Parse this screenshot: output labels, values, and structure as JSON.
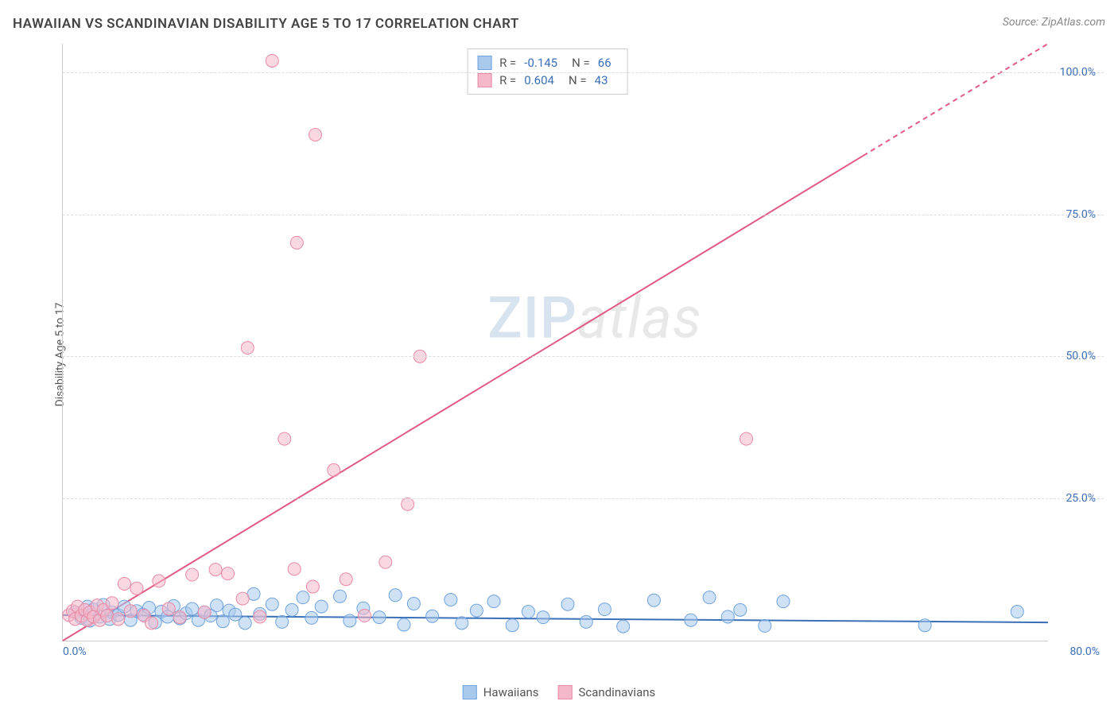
{
  "title": "HAWAIIAN VS SCANDINAVIAN DISABILITY AGE 5 TO 17 CORRELATION CHART",
  "source": "Source: ZipAtlas.com",
  "y_axis_label": "Disability Age 5 to 17",
  "watermark_a": "ZIP",
  "watermark_b": "atlas",
  "chart": {
    "type": "scatter",
    "xlim": [
      0,
      80
    ],
    "ylim": [
      0,
      105
    ],
    "x_ticks": [
      {
        "pos": 0,
        "label": "0.0%"
      },
      {
        "pos": 80,
        "label": "80.0%"
      }
    ],
    "y_ticks": [
      {
        "pos": 25,
        "label": "25.0%"
      },
      {
        "pos": 50,
        "label": "50.0%"
      },
      {
        "pos": 75,
        "label": "75.0%"
      },
      {
        "pos": 100,
        "label": "100.0%"
      }
    ],
    "grid_color": "#dddddd",
    "background_color": "#ffffff",
    "marker_radius": 8,
    "series": [
      {
        "name": "Hawaiians",
        "fill": "#a8c8ec",
        "stroke": "#6fa3dd",
        "fill_opacity": 0.55,
        "trend": {
          "x1": 0,
          "y1": 4.5,
          "x2": 80,
          "y2": 3.2,
          "color": "#3b6fb6",
          "width": 2
        },
        "points": [
          [
            1,
            5
          ],
          [
            1.5,
            4
          ],
          [
            2,
            6
          ],
          [
            2.2,
            3.5
          ],
          [
            2.5,
            5.5
          ],
          [
            3,
            4.2
          ],
          [
            3.3,
            6.3
          ],
          [
            3.8,
            3.8
          ],
          [
            4,
            5
          ],
          [
            4.5,
            4.5
          ],
          [
            5,
            6
          ],
          [
            5.5,
            3.6
          ],
          [
            6,
            5.2
          ],
          [
            6.5,
            4.6
          ],
          [
            7,
            5.8
          ],
          [
            7.5,
            3.2
          ],
          [
            8,
            5.1
          ],
          [
            8.5,
            4.2
          ],
          [
            9,
            6.1
          ],
          [
            9.5,
            3.9
          ],
          [
            10,
            4.8
          ],
          [
            10.5,
            5.6
          ],
          [
            11,
            3.6
          ],
          [
            11.5,
            5
          ],
          [
            12,
            4.4
          ],
          [
            12.5,
            6.2
          ],
          [
            13,
            3.4
          ],
          [
            13.5,
            5.3
          ],
          [
            14,
            4.6
          ],
          [
            14.8,
            3.1
          ],
          [
            15.5,
            8.2
          ],
          [
            16,
            4.7
          ],
          [
            17,
            6.4
          ],
          [
            17.8,
            3.3
          ],
          [
            18.6,
            5.4
          ],
          [
            19.5,
            7.6
          ],
          [
            20.2,
            4
          ],
          [
            21,
            6
          ],
          [
            22.5,
            7.8
          ],
          [
            23.3,
            3.5
          ],
          [
            24.4,
            5.7
          ],
          [
            25.7,
            4.1
          ],
          [
            27,
            8
          ],
          [
            27.7,
            2.8
          ],
          [
            28.5,
            6.5
          ],
          [
            30,
            4.3
          ],
          [
            31.5,
            7.2
          ],
          [
            32.4,
            3.1
          ],
          [
            33.6,
            5.3
          ],
          [
            35,
            6.9
          ],
          [
            36.5,
            2.7
          ],
          [
            37.8,
            5.1
          ],
          [
            39,
            4.1
          ],
          [
            41,
            6.4
          ],
          [
            42.5,
            3.3
          ],
          [
            44,
            5.5
          ],
          [
            45.5,
            2.5
          ],
          [
            48,
            7.1
          ],
          [
            51,
            3.6
          ],
          [
            52.5,
            7.6
          ],
          [
            54,
            4.2
          ],
          [
            55,
            5.4
          ],
          [
            57,
            2.6
          ],
          [
            58.5,
            6.9
          ],
          [
            70,
            2.7
          ],
          [
            77.5,
            5.1
          ]
        ]
      },
      {
        "name": "Scandinavians",
        "fill": "#f5b8c9",
        "stroke": "#e88aa6",
        "fill_opacity": 0.55,
        "trend": {
          "x1": 0,
          "y1": 0,
          "x2": 80,
          "y2": 105,
          "color": "#e05a84",
          "width": 2,
          "dash_after_x": 65
        },
        "points": [
          [
            0.5,
            4.5
          ],
          [
            0.8,
            5.2
          ],
          [
            1,
            3.8
          ],
          [
            1.2,
            6
          ],
          [
            1.5,
            4.4
          ],
          [
            1.8,
            5.4
          ],
          [
            2,
            3.6
          ],
          [
            2.2,
            5
          ],
          [
            2.5,
            4.2
          ],
          [
            2.8,
            6.2
          ],
          [
            3,
            3.6
          ],
          [
            3.3,
            5.4
          ],
          [
            3.6,
            4.4
          ],
          [
            4,
            6.6
          ],
          [
            4.5,
            3.8
          ],
          [
            5,
            10
          ],
          [
            5.5,
            5.2
          ],
          [
            6,
            9.2
          ],
          [
            6.6,
            4.4
          ],
          [
            7.2,
            3.1
          ],
          [
            7.8,
            10.5
          ],
          [
            8.6,
            5.6
          ],
          [
            9.5,
            4.1
          ],
          [
            10.5,
            11.6
          ],
          [
            11.5,
            5
          ],
          [
            12.4,
            12.5
          ],
          [
            13.4,
            11.8
          ],
          [
            14.6,
            7.4
          ],
          [
            15,
            51.5
          ],
          [
            16,
            4.2
          ],
          [
            17,
            102
          ],
          [
            18,
            35.5
          ],
          [
            18.8,
            12.6
          ],
          [
            19,
            70
          ],
          [
            20.3,
            9.5
          ],
          [
            20.5,
            89
          ],
          [
            22,
            30
          ],
          [
            23,
            10.8
          ],
          [
            24.5,
            4.4
          ],
          [
            26.2,
            13.8
          ],
          [
            28,
            24
          ],
          [
            29,
            50
          ],
          [
            55.5,
            35.5
          ]
        ]
      }
    ],
    "stats": [
      {
        "series": 0,
        "r": "-0.145",
        "n": "66"
      },
      {
        "series": 1,
        "r": "0.604",
        "n": "43"
      }
    ]
  },
  "legend": {
    "items": [
      {
        "label": "Hawaiians",
        "fill": "#a8c8ec",
        "stroke": "#6fa3dd"
      },
      {
        "label": "Scandinavians",
        "fill": "#f5b8c9",
        "stroke": "#e88aa6"
      }
    ]
  }
}
